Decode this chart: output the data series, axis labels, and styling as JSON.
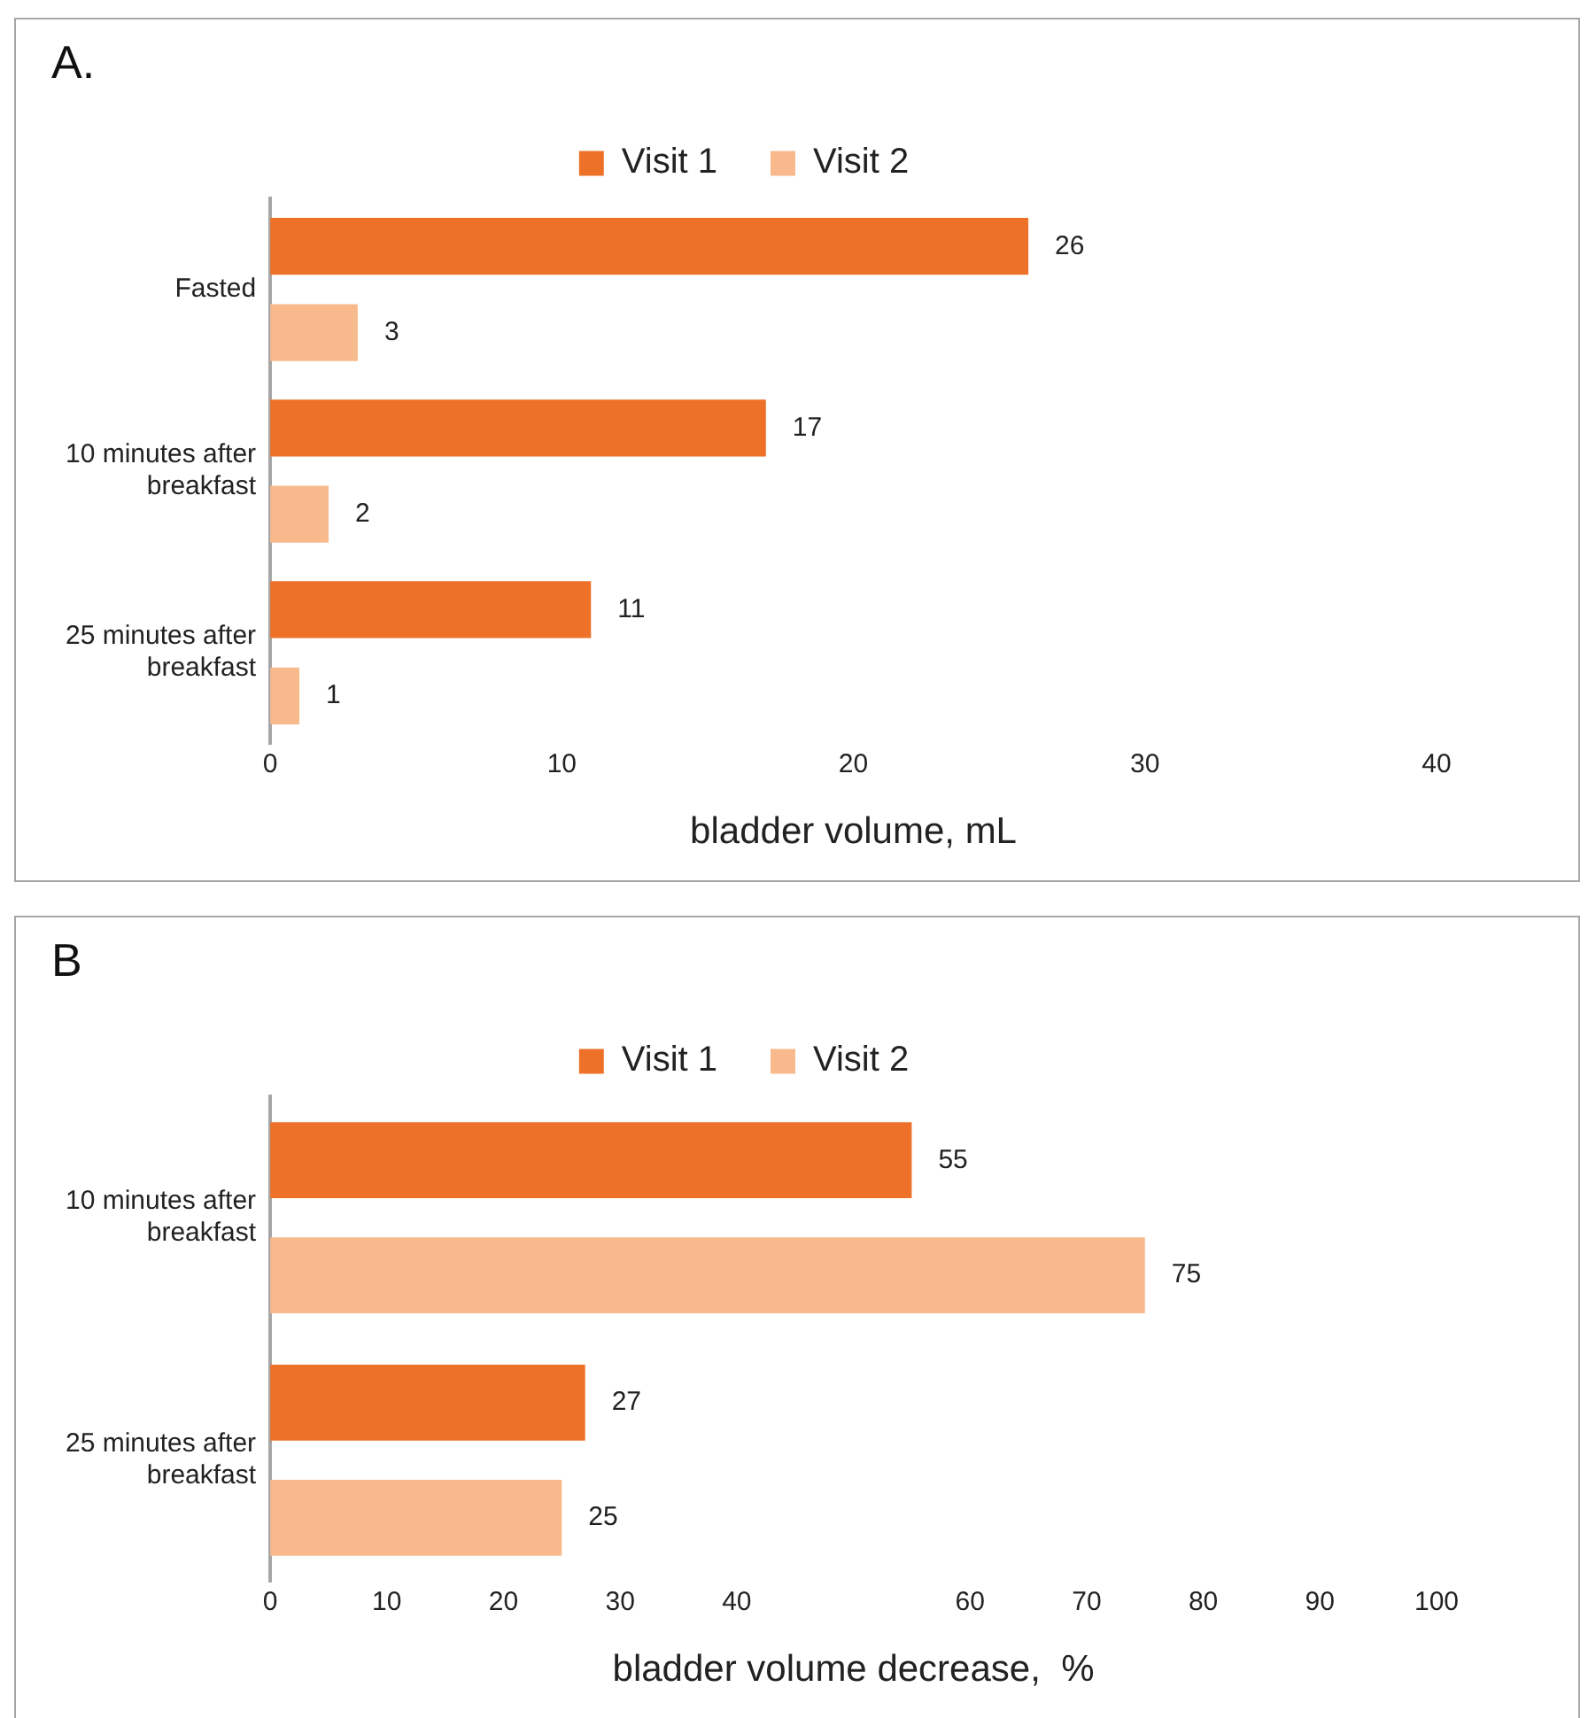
{
  "chart_data": [
    {
      "type": "bar",
      "title": "A.",
      "orientation": "horizontal",
      "categories": [
        "Fasted",
        "10 minutes after breakfast",
        "25 minutes after breakfast"
      ],
      "series": [
        {
          "name": "Visit 1",
          "color": "#ed7128",
          "values": [
            26,
            17,
            11
          ]
        },
        {
          "name": "Visit 2",
          "color": "#f8ba8c",
          "values": [
            3,
            2,
            1
          ]
        }
      ],
      "xlabel": "bladder volume, mL",
      "xlim": [
        0,
        40
      ],
      "xticks": [
        0,
        10,
        20,
        30,
        40
      ],
      "grid": false,
      "legend": "top",
      "data_labels": true
    },
    {
      "type": "bar",
      "title": "B",
      "orientation": "horizontal",
      "categories": [
        "10 minutes after breakfast",
        "25 minutes after breakfast"
      ],
      "series": [
        {
          "name": "Visit 1",
          "color": "#ed7128",
          "values": [
            55,
            27
          ]
        },
        {
          "name": "Visit 2",
          "color": "#f8ba8c",
          "values": [
            75,
            25
          ]
        }
      ],
      "xlabel": "bladder volume decrease,  %",
      "xlim": [
        0,
        100
      ],
      "xticks": [
        0,
        10,
        20,
        30,
        40,
        60,
        70,
        80,
        90,
        100
      ],
      "grid": false,
      "legend": "top",
      "data_labels": true
    }
  ]
}
